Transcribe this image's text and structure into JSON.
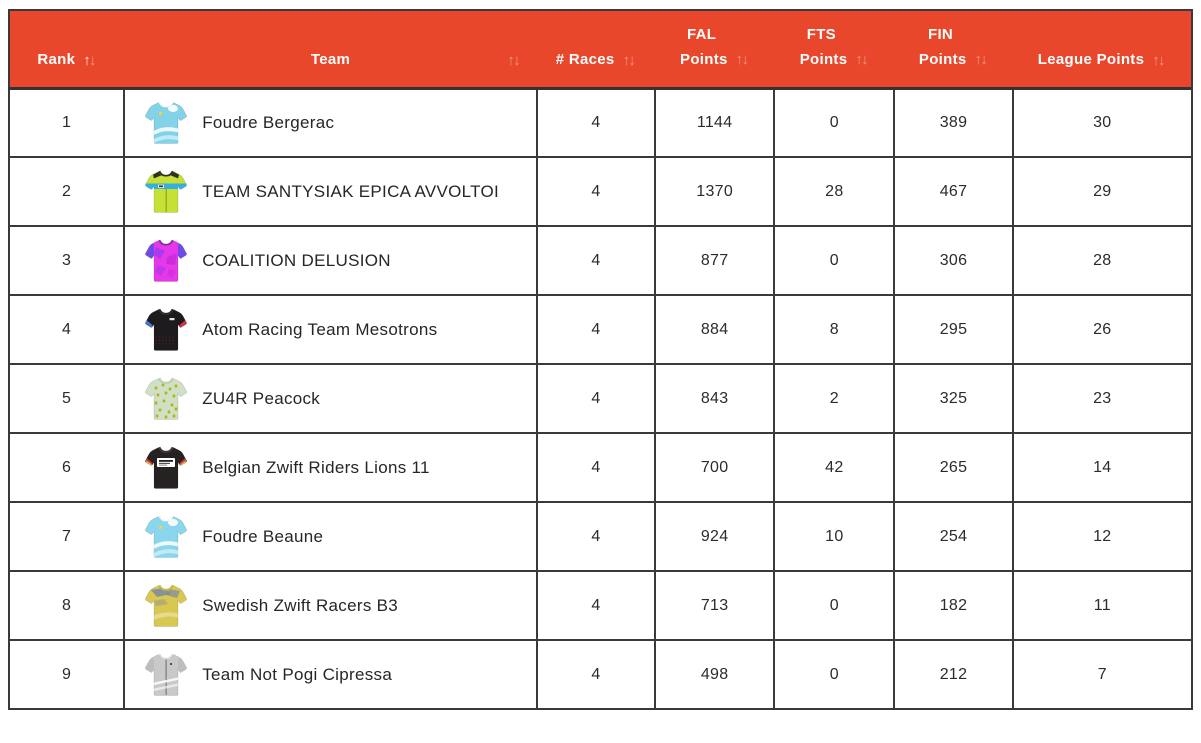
{
  "colors": {
    "header_bg": "#E8472B",
    "header_text": "#FFFFFF",
    "table_border": "#3A3A3A",
    "cell_text": "#2B2B2B",
    "sort_active": "#F7EFDC",
    "sort_inactive": "rgba(255,255,255,0.42)"
  },
  "table": {
    "columns": [
      {
        "id": "rank",
        "label": "Rank",
        "label2": null,
        "sort": "asc"
      },
      {
        "id": "team",
        "label": "Team",
        "label2": null,
        "sort": "none"
      },
      {
        "id": "races",
        "label": "# Races",
        "label2": null,
        "sort": "none"
      },
      {
        "id": "fal",
        "label": "FAL",
        "label2": "Points",
        "sort": "none"
      },
      {
        "id": "fts",
        "label": "FTS",
        "label2": "Points",
        "sort": "none"
      },
      {
        "id": "fin",
        "label": "FIN",
        "label2": "Points",
        "sort": "none"
      },
      {
        "id": "league",
        "label": "League Points",
        "label2": null,
        "sort": "none"
      }
    ],
    "sort_icon": {
      "up": "↑",
      "down": "↓"
    },
    "rows": [
      {
        "rank": "1",
        "team": "Foudre Bergerac",
        "races": "4",
        "fal": "1144",
        "fts": "0",
        "fin": "389",
        "league": "30",
        "jersey": {
          "body": "#82D2E8",
          "sleeves": "",
          "collar": "#F3F8FA",
          "pattern": "waves",
          "pattern_color": "#FFFFFF",
          "pattern_color2": "#C2E9F6"
        }
      },
      {
        "rank": "2",
        "team": "TEAM SANTYSIAK EPICA AVVOLTOI",
        "races": "4",
        "fal": "1370",
        "fts": "28",
        "fin": "467",
        "league": "29",
        "jersey": {
          "body": "#C6E036",
          "sleeves": "",
          "collar": "#2E2E20",
          "pattern": "band",
          "pattern_color": "#35AEE0",
          "pattern_color2": "#1D1D1D"
        }
      },
      {
        "rank": "3",
        "team": "COALITION DELUSION",
        "races": "4",
        "fal": "877",
        "fts": "0",
        "fin": "306",
        "league": "28",
        "jersey": {
          "body": "#E637E8",
          "sleeves": "#6C4BE8",
          "collar": "#7C2BA8",
          "pattern": "blotch",
          "pattern_color": "#9B3BF0",
          "pattern_color2": "#C32BD6"
        }
      },
      {
        "rank": "4",
        "team": "Atom Racing Team Mesotrons",
        "races": "4",
        "fal": "884",
        "fts": "8",
        "fin": "295",
        "league": "26",
        "jersey": {
          "body": "#1E1B1E",
          "sleeves": "",
          "collar": "#2A262A",
          "pattern": "trim",
          "pattern_color": "#3C79D6",
          "pattern_color2": "#D6333F"
        }
      },
      {
        "rank": "5",
        "team": "ZU4R Peacock",
        "races": "4",
        "fal": "843",
        "fts": "2",
        "fin": "325",
        "league": "23",
        "jersey": {
          "body": "#CFE0C6",
          "sleeves": "",
          "collar": "#BCCFB4",
          "pattern": "speckle",
          "pattern_color": "#CBD052",
          "pattern_color2": "#54572E"
        }
      },
      {
        "rank": "6",
        "team": "Belgian Zwift Riders Lions 11",
        "races": "4",
        "fal": "700",
        "fts": "42",
        "fin": "265",
        "league": "14",
        "jersey": {
          "body": "#262222",
          "sleeves": "",
          "collar": "#3A3434",
          "pattern": "chest",
          "pattern_color": "#D6333F",
          "pattern_color2": "#E8C23A"
        }
      },
      {
        "rank": "7",
        "team": "Foudre Beaune",
        "races": "4",
        "fal": "924",
        "fts": "10",
        "fin": "254",
        "league": "12",
        "jersey": {
          "body": "#8AD6EC",
          "sleeves": "",
          "collar": "#F3F8FA",
          "pattern": "waves",
          "pattern_color": "#FFFFFF",
          "pattern_color2": "#C2E9F6"
        }
      },
      {
        "rank": "8",
        "team": "Swedish Zwift Racers B3",
        "races": "4",
        "fal": "713",
        "fts": "0",
        "fin": "182",
        "league": "11",
        "jersey": {
          "body": "#D8C751",
          "sleeves": "",
          "collar": "#C9B93E",
          "pattern": "smudge",
          "pattern_color": "#7C89A0",
          "pattern_color2": "#FFFFFF"
        }
      },
      {
        "rank": "9",
        "team": "Team Not Pogi Cipressa",
        "races": "4",
        "fal": "498",
        "fts": "0",
        "fin": "212",
        "league": "7",
        "jersey": {
          "body": "#C9C9C9",
          "sleeves": "#BDBDBD",
          "collar": "#DBDBDB",
          "pattern": "stripes",
          "pattern_color": "#FFFFFF",
          "pattern_color2": "#6A6A6A"
        }
      }
    ]
  }
}
